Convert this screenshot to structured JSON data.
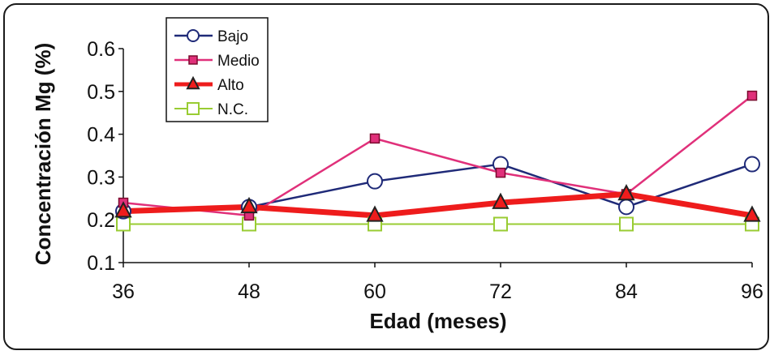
{
  "chart_data": {
    "type": "line",
    "title": "",
    "xlabel": "Edad (meses)",
    "ylabel": "Concentración Mg (%)",
    "categories": [
      "36",
      "48",
      "60",
      "72",
      "84",
      "96"
    ],
    "x": [
      36,
      48,
      60,
      72,
      84,
      96
    ],
    "ylim": [
      0.1,
      0.6
    ],
    "yticks": [
      "0.1",
      "0.2",
      "0.3",
      "0.4",
      "0.5",
      "0.6"
    ],
    "grid": false,
    "legend_position": "top-left",
    "series": [
      {
        "name": "Bajo",
        "values": [
          0.22,
          0.23,
          0.29,
          0.33,
          0.23,
          0.33
        ],
        "color": "#1f2a78",
        "marker": "circle",
        "line_width": 2.5
      },
      {
        "name": "Medio",
        "values": [
          0.24,
          0.21,
          0.39,
          0.31,
          0.26,
          0.49
        ],
        "color": "#e0307a",
        "marker": "square",
        "line_width": 2.5
      },
      {
        "name": "Alto",
        "values": [
          0.22,
          0.23,
          0.21,
          0.24,
          0.26,
          0.21
        ],
        "color": "#ee1c1c",
        "marker": "triangle",
        "line_width": 7
      },
      {
        "name": "N.C.",
        "values": [
          0.19,
          0.19,
          0.19,
          0.19,
          0.19,
          0.19
        ],
        "color": "#99cc33",
        "marker": "square-open",
        "line_width": 2
      }
    ]
  }
}
